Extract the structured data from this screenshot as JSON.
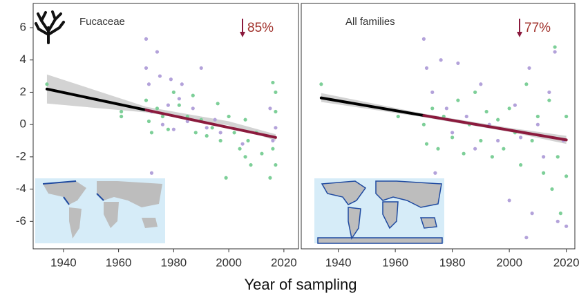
{
  "chart_data": [
    {
      "type": "scatter",
      "annotation": "Fucaceae",
      "change_label": "85%",
      "xlabel": "Year of sampling",
      "xlim": [
        1929,
        2025.3
      ],
      "ylim": [
        -7.7,
        7.5
      ],
      "xticks": [
        1940,
        1960,
        1980,
        2000,
        2020
      ],
      "yticks": [
        -6,
        -4,
        -2,
        0,
        2,
        4,
        6
      ],
      "series": [
        {
          "color": "#7dcf98",
          "x": [
            1934,
            1961,
            1961,
            1970,
            1971,
            1972,
            1974,
            1976,
            1978,
            1980,
            1982,
            1985,
            1987,
            1988,
            1990,
            1992,
            1994,
            1996,
            1997,
            1999,
            2000,
            2002,
            2004,
            2006,
            2006,
            2007,
            2008,
            2010,
            2012,
            2015,
            2016,
            2016,
            2017,
            2017,
            2017
          ],
          "values": [
            2.5,
            0.8,
            0.5,
            1.5,
            0.2,
            -0.5,
            1.0,
            0.5,
            -0.3,
            2.0,
            1.2,
            0.5,
            1.8,
            -0.5,
            0.3,
            -0.7,
            -0.2,
            1.3,
            -1.0,
            -3.3,
            0.5,
            -0.5,
            -1.5,
            -2.0,
            0.3,
            -1.0,
            -2.5,
            -0.5,
            -1.8,
            -3.3,
            2.6,
            -1.5,
            0.8,
            -2.5,
            2.0
          ]
        },
        {
          "color": "#b3a2da",
          "x": [
            1970,
            1970,
            1971,
            1972,
            1972,
            1974,
            1975,
            1976,
            1978,
            1979,
            1980,
            1982,
            1983,
            1985,
            1987,
            1990,
            1992,
            1995,
            1997,
            2005,
            2016,
            2017,
            2015
          ],
          "values": [
            5.3,
            3.5,
            2.5,
            -3.0,
            0.8,
            4.5,
            3.0,
            0.0,
            1.2,
            2.8,
            -0.3,
            1.6,
            2.5,
            0.2,
            1.0,
            3.5,
            -0.2,
            0.3,
            -0.5,
            -1.2,
            -1.0,
            -0.2,
            1.0
          ]
        }
      ],
      "fit": {
        "x": [
          1934,
          1970,
          2017
        ],
        "y": [
          2.2,
          0.9,
          -0.8
        ],
        "colors": [
          "#000000",
          "#8b1a3d"
        ]
      },
      "band": {
        "color": "#d3d3d3",
        "x": [
          1934,
          1970,
          2000,
          2017
        ],
        "lower": [
          1.3,
          0.75,
          -0.05,
          -1.0
        ],
        "upper": [
          3.1,
          1.1,
          0.2,
          -0.6
        ]
      }
    },
    {
      "type": "scatter",
      "annotation": "All families",
      "change_label": "77%",
      "xlim": [
        1927,
        2023
      ],
      "ylim": [
        -7.7,
        7.5
      ],
      "xticks": [
        1940,
        1960,
        1980,
        2000,
        2020
      ],
      "series": [
        {
          "color": "#7dcf98",
          "x": [
            1934,
            1961,
            1970,
            1971,
            1973,
            1975,
            1977,
            1980,
            1982,
            1984,
            1986,
            1988,
            1990,
            1992,
            1994,
            1996,
            1998,
            2000,
            2002,
            2004,
            2006,
            2008,
            2010,
            2012,
            2014,
            2015,
            2016,
            2017,
            2018,
            2020,
            2020
          ],
          "values": [
            2.5,
            0.5,
            0.0,
            -1.2,
            1.0,
            -1.5,
            0.5,
            -0.8,
            1.5,
            -1.8,
            0.0,
            2.0,
            -1.0,
            0.8,
            -2.0,
            0.3,
            -1.5,
            1.0,
            -0.5,
            -2.5,
            2.5,
            -1.0,
            0.5,
            -3.0,
            1.5,
            -4.0,
            4.8,
            -2.0,
            -5.5,
            0.5,
            -3.2
          ]
        },
        {
          "color": "#b3a2da",
          "x": [
            1970,
            1971,
            1973,
            1974,
            1976,
            1978,
            1980,
            1982,
            1985,
            1988,
            1990,
            1993,
            1996,
            2000,
            2002,
            2004,
            2006,
            2007,
            2008,
            2010,
            2012,
            2014,
            2016,
            2017,
            2019,
            2020
          ],
          "values": [
            5.3,
            3.5,
            2.0,
            -3.0,
            4.0,
            1.0,
            -0.5,
            3.8,
            0.5,
            -1.5,
            2.5,
            0.0,
            -1.0,
            -4.7,
            1.2,
            -0.8,
            -7.0,
            3.5,
            -5.5,
            0.0,
            -2.0,
            2.0,
            4.5,
            -6.0,
            -1.0,
            -6.3
          ]
        }
      ],
      "fit": {
        "x": [
          1934,
          1970,
          2020
        ],
        "y": [
          1.65,
          0.56,
          -0.95
        ],
        "colors": [
          "#000000",
          "#8b1a3d"
        ]
      },
      "band": {
        "color": "#d3d3d3",
        "x": [
          1934,
          1970,
          2000,
          2020
        ],
        "lower": [
          1.4,
          0.45,
          -0.45,
          -1.2
        ],
        "upper": [
          1.95,
          0.67,
          -0.2,
          -0.7
        ]
      }
    }
  ]
}
